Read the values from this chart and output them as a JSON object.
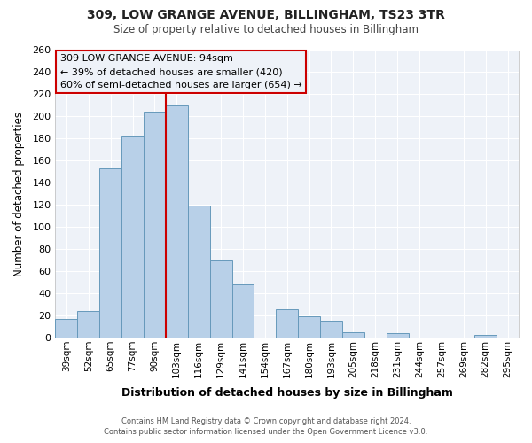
{
  "title": "309, LOW GRANGE AVENUE, BILLINGHAM, TS23 3TR",
  "subtitle": "Size of property relative to detached houses in Billingham",
  "xlabel": "Distribution of detached houses by size in Billingham",
  "ylabel": "Number of detached properties",
  "categories": [
    "39sqm",
    "52sqm",
    "65sqm",
    "77sqm",
    "90sqm",
    "103sqm",
    "116sqm",
    "129sqm",
    "141sqm",
    "154sqm",
    "167sqm",
    "180sqm",
    "193sqm",
    "205sqm",
    "218sqm",
    "231sqm",
    "244sqm",
    "257sqm",
    "269sqm",
    "282sqm",
    "295sqm"
  ],
  "values": [
    17,
    24,
    153,
    182,
    204,
    210,
    119,
    70,
    48,
    0,
    26,
    19,
    15,
    5,
    0,
    4,
    0,
    0,
    0,
    2,
    0
  ],
  "bar_color": "#b8d0e8",
  "bar_edge_color": "#6699bb",
  "background_color": "#ffffff",
  "plot_bg_color": "#eef2f8",
  "grid_color": "#ffffff",
  "vline_x": 4.5,
  "vline_color": "#cc0000",
  "annotation_lines": [
    "309 LOW GRANGE AVENUE: 94sqm",
    "← 39% of detached houses are smaller (420)",
    "60% of semi-detached houses are larger (654) →"
  ],
  "annotation_box_color": "#cc0000",
  "ylim": [
    0,
    260
  ],
  "yticks": [
    0,
    20,
    40,
    60,
    80,
    100,
    120,
    140,
    160,
    180,
    200,
    220,
    240,
    260
  ],
  "footer_line1": "Contains HM Land Registry data © Crown copyright and database right 2024.",
  "footer_line2": "Contains public sector information licensed under the Open Government Licence v3.0."
}
